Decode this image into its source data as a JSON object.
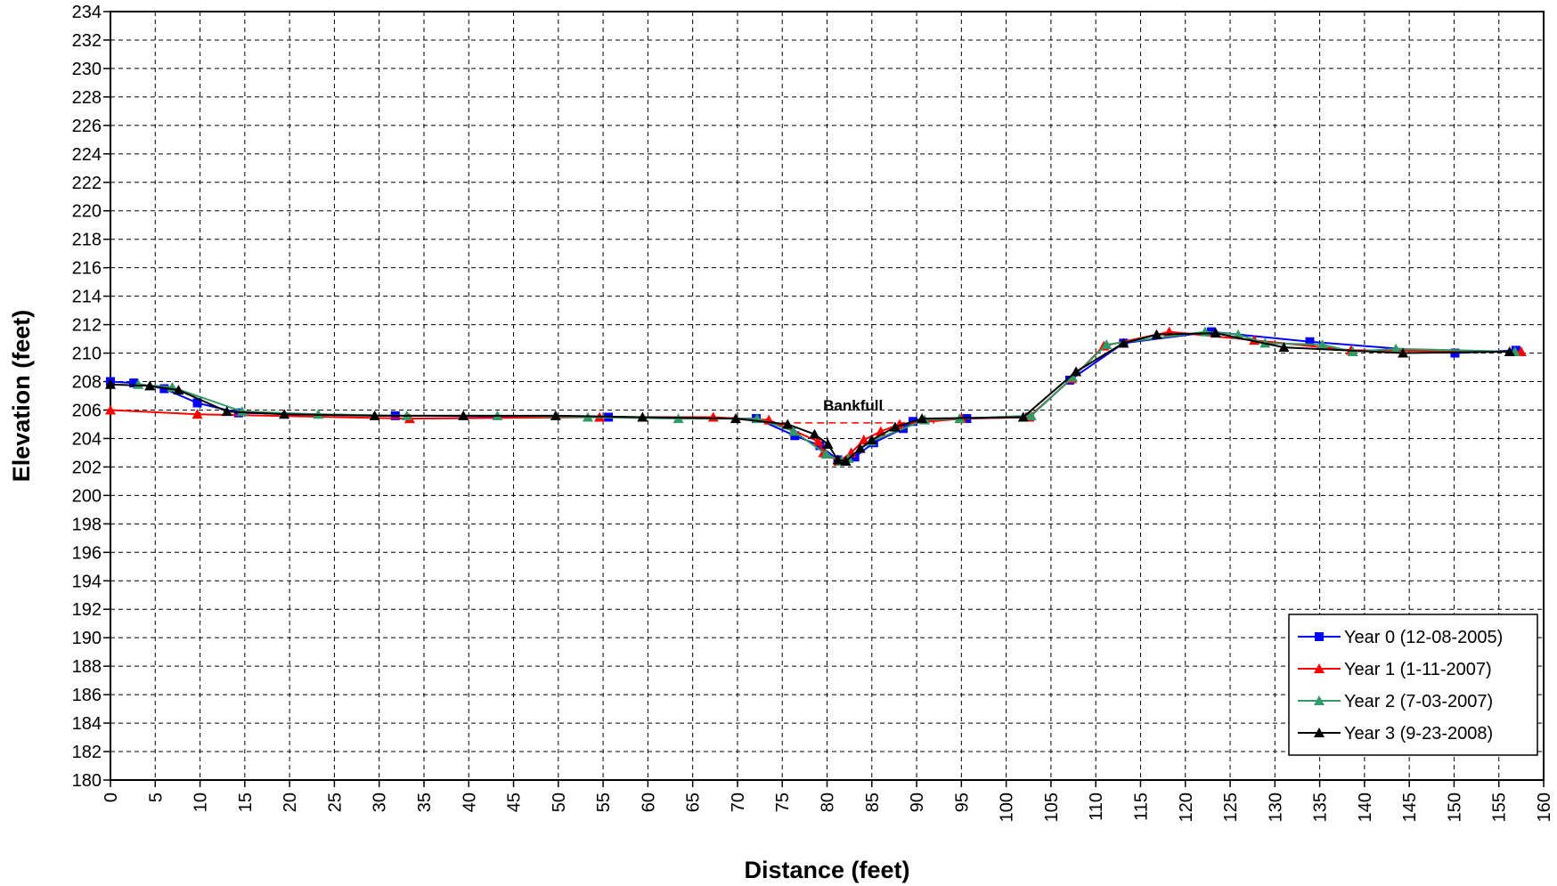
{
  "chart_data": {
    "type": "line",
    "xlabel": "Distance (feet)",
    "ylabel": "Elevation (feet)",
    "xlim": [
      0,
      160
    ],
    "ylim": [
      180,
      234
    ],
    "x_ticks": [
      0,
      5,
      10,
      15,
      20,
      25,
      30,
      35,
      40,
      45,
      50,
      55,
      60,
      65,
      70,
      75,
      80,
      85,
      90,
      95,
      100,
      105,
      110,
      115,
      120,
      125,
      130,
      135,
      140,
      145,
      150,
      155,
      160
    ],
    "y_ticks": [
      180,
      182,
      184,
      186,
      188,
      190,
      192,
      194,
      196,
      198,
      200,
      202,
      204,
      206,
      208,
      210,
      212,
      214,
      216,
      218,
      220,
      222,
      224,
      226,
      228,
      230,
      232,
      234
    ],
    "grid": true,
    "legend_position": "bottom-right",
    "annotations": [
      {
        "text": "Bankfull",
        "x_from": 75,
        "x_to": 92,
        "y": 205.1,
        "color": "#FF0000"
      }
    ],
    "series": [
      {
        "name": "Year 0 (12-08-2005)",
        "color": "#0000FF",
        "marker": "square",
        "points": [
          [
            0,
            208.0
          ],
          [
            2.6,
            207.9
          ],
          [
            6,
            207.5
          ],
          [
            9.7,
            206.5
          ],
          [
            14.3,
            205.8
          ],
          [
            31.8,
            205.6
          ],
          [
            55.6,
            205.5
          ],
          [
            72.1,
            205.4
          ],
          [
            76.4,
            204.2
          ],
          [
            79.2,
            203.5
          ],
          [
            81.2,
            202.5
          ],
          [
            83.1,
            202.7
          ],
          [
            85.2,
            203.7
          ],
          [
            88.5,
            204.7
          ],
          [
            89.6,
            205.2
          ],
          [
            95.6,
            205.4
          ],
          [
            102.6,
            205.5
          ],
          [
            107.1,
            208.1
          ],
          [
            113.1,
            210.7
          ],
          [
            122.9,
            211.5
          ],
          [
            133.9,
            210.8
          ],
          [
            150.1,
            210.0
          ],
          [
            156.9,
            210.2
          ]
        ]
      },
      {
        "name": "Year 1 (1-11-2007)",
        "color": "#FF0000",
        "marker": "triangle",
        "points": [
          [
            0,
            206.0
          ],
          [
            9.7,
            205.7
          ],
          [
            33.4,
            205.4
          ],
          [
            54.6,
            205.5
          ],
          [
            67.3,
            205.5
          ],
          [
            73.5,
            205.3
          ],
          [
            79,
            203.8
          ],
          [
            79.6,
            203.0
          ],
          [
            81.3,
            202.4
          ],
          [
            82.7,
            203.0
          ],
          [
            84.1,
            203.9
          ],
          [
            86,
            204.5
          ],
          [
            88.1,
            205.0
          ],
          [
            95,
            205.4
          ],
          [
            102.5,
            205.5
          ],
          [
            107.3,
            208.2
          ],
          [
            110.9,
            210.5
          ],
          [
            118.2,
            211.5
          ],
          [
            127.7,
            210.9
          ],
          [
            138.5,
            210.2
          ],
          [
            157.5,
            210.1
          ]
        ]
      },
      {
        "name": "Year 2 (7-03-2007)",
        "color": "#339966",
        "marker": "triangle",
        "points": [
          [
            3.1,
            207.8
          ],
          [
            6.9,
            207.6
          ],
          [
            14.7,
            205.9
          ],
          [
            23.2,
            205.7
          ],
          [
            33.1,
            205.6
          ],
          [
            43.2,
            205.6
          ],
          [
            53.3,
            205.5
          ],
          [
            63.4,
            205.4
          ],
          [
            72.2,
            205.4
          ],
          [
            76.3,
            204.5
          ],
          [
            79.9,
            202.9
          ],
          [
            81.6,
            202.4
          ],
          [
            82.4,
            202.6
          ],
          [
            84.9,
            203.8
          ],
          [
            90.9,
            205.3
          ],
          [
            94.8,
            205.4
          ],
          [
            102.8,
            205.6
          ],
          [
            107.4,
            208.3
          ],
          [
            111.2,
            210.6
          ],
          [
            122.2,
            211.5
          ],
          [
            125.9,
            211.3
          ],
          [
            128.9,
            210.7
          ],
          [
            135.3,
            210.6
          ],
          [
            138.7,
            210.1
          ],
          [
            143.5,
            210.3
          ],
          [
            156.8,
            210.1
          ]
        ]
      },
      {
        "name": "Year 3 (9-23-2008)",
        "color": "#000000",
        "marker": "triangle",
        "points": [
          [
            0,
            207.8
          ],
          [
            4.4,
            207.7
          ],
          [
            7.6,
            207.4
          ],
          [
            13,
            205.9
          ],
          [
            19.4,
            205.7
          ],
          [
            29.5,
            205.6
          ],
          [
            39.4,
            205.6
          ],
          [
            49.7,
            205.6
          ],
          [
            59.4,
            205.5
          ],
          [
            69.8,
            205.4
          ],
          [
            75.6,
            205.0
          ],
          [
            78.6,
            204.3
          ],
          [
            80.1,
            203.6
          ],
          [
            81.2,
            202.5
          ],
          [
            82.1,
            202.4
          ],
          [
            83.7,
            203.3
          ],
          [
            85,
            203.9
          ],
          [
            87.6,
            204.8
          ],
          [
            90.6,
            205.4
          ],
          [
            101.9,
            205.5
          ],
          [
            107.8,
            208.7
          ],
          [
            113.1,
            210.7
          ],
          [
            116.8,
            211.3
          ],
          [
            123.4,
            211.4
          ],
          [
            131,
            210.4
          ],
          [
            144.3,
            210.0
          ],
          [
            156.2,
            210.1
          ]
        ]
      }
    ]
  }
}
